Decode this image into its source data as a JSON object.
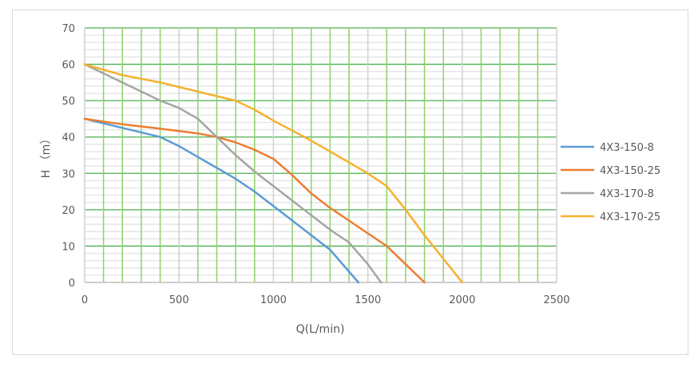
{
  "chart_data": {
    "type": "line",
    "title": "",
    "xlabel": "Q(L/min)",
    "ylabel": "H （m）",
    "xlim": [
      0,
      2500
    ],
    "ylim": [
      0,
      70
    ],
    "x_ticks": [
      "0",
      "500",
      "1000",
      "1500",
      "2000",
      "2500"
    ],
    "y_ticks": [
      "0",
      "10",
      "20",
      "30",
      "40",
      "50",
      "60",
      "70"
    ],
    "grid": true,
    "legend_position": "right",
    "series": [
      {
        "name": "4X3-150-8",
        "color": "#5B9BD5",
        "x": [
          0,
          200,
          400,
          500,
          600,
          800,
          900,
          1000,
          1100,
          1200,
          1300,
          1450
        ],
        "y": [
          45,
          42.5,
          40,
          37.5,
          34.5,
          28.5,
          25,
          21,
          17,
          13,
          9,
          0
        ]
      },
      {
        "name": "4X3-150-25",
        "color": "#ED7D31",
        "x": [
          0,
          200,
          400,
          600,
          700,
          800,
          900,
          1000,
          1100,
          1200,
          1300,
          1400,
          1500,
          1600,
          1700,
          1800
        ],
        "y": [
          45,
          43.5,
          42.3,
          41,
          40,
          38.5,
          36.5,
          34,
          29.5,
          24.5,
          20.5,
          17,
          13.5,
          10,
          5,
          0
        ]
      },
      {
        "name": "4X3-170-8",
        "color": "#A5A5A5",
        "x": [
          0,
          200,
          400,
          500,
          600,
          700,
          800,
          900,
          1000,
          1100,
          1200,
          1300,
          1400,
          1500,
          1570
        ],
        "y": [
          60,
          55,
          50,
          48,
          45,
          40,
          35,
          30.5,
          26.5,
          22.5,
          18.5,
          14.5,
          11,
          5,
          0
        ]
      },
      {
        "name": "4X3-170-25",
        "color": "#F5B12E",
        "x": [
          0,
          200,
          400,
          600,
          800,
          900,
          1000,
          1200,
          1400,
          1500,
          1600,
          1700,
          1800,
          1900,
          2000
        ],
        "y": [
          60,
          57,
          55,
          52.5,
          50,
          47.5,
          44.5,
          39,
          33,
          30,
          26.5,
          20,
          13,
          6.5,
          0
        ]
      }
    ]
  }
}
